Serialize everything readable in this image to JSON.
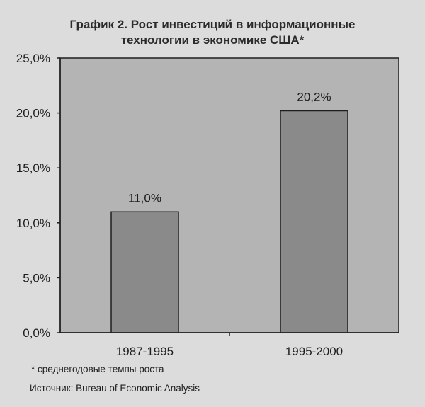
{
  "chart_data": {
    "type": "bar",
    "title_lines": [
      "График 2. Рост инвестиций в информационные",
      "технологии в экономике США*"
    ],
    "categories": [
      "1987-1995",
      "1995-2000"
    ],
    "values": [
      11.0,
      20.2
    ],
    "data_labels": [
      "11,0%",
      "20,2%"
    ],
    "ylim": [
      0,
      25
    ],
    "yticks": [
      0,
      5,
      10,
      15,
      20,
      25
    ],
    "ytick_labels": [
      "0,0%",
      "5,0%",
      "10,0%",
      "15,0%",
      "20,0%",
      "25,0%"
    ],
    "xlabel": "",
    "ylabel": "",
    "grid": false,
    "legend": "none",
    "footnote": "* среднегодовые темпы роста",
    "source": "Источник: Bureau of Economic Analysis"
  },
  "colors": {
    "page_bg": "#dcdcdc",
    "plot_bg": "#b4b4b4",
    "bar_fill": "#8a8a8a",
    "bar_stroke": "#1e1e1e",
    "axis": "#1e1e1e"
  }
}
